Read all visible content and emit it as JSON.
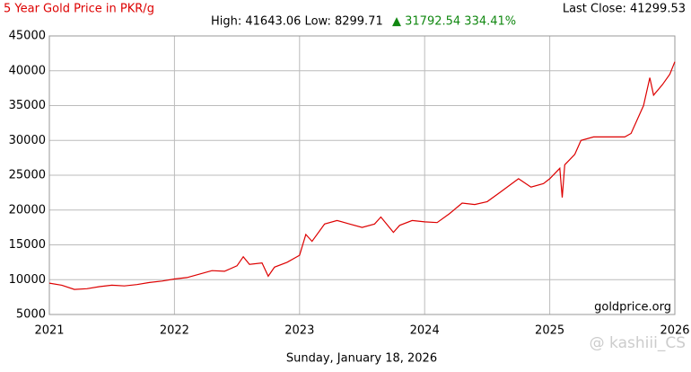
{
  "chart_data": {
    "type": "line",
    "title": "5 Year Gold Price in PKR/g",
    "stats": "High: 41643.06 Low: 8299.71",
    "change": "▲ 31792.54 334.41%",
    "last_close": "Last Close: 41299.53",
    "source": "goldprice.org",
    "date": "Sunday, January 18, 2026",
    "watermark": "@ kashiii_CS",
    "color": "#dd0000",
    "grid": true,
    "xlim": [
      2021,
      2026
    ],
    "xticks": [
      2021,
      2022,
      2023,
      2024,
      2025,
      2026
    ],
    "ylim": [
      5000,
      45000
    ],
    "yticks": [
      5000,
      10000,
      15000,
      20000,
      25000,
      30000,
      35000,
      40000,
      45000
    ],
    "x": [
      2021.0,
      2021.1,
      2021.2,
      2021.3,
      2021.4,
      2021.5,
      2021.6,
      2021.7,
      2021.8,
      2021.9,
      2022.0,
      2022.1,
      2022.2,
      2022.3,
      2022.4,
      2022.5,
      2022.55,
      2022.6,
      2022.7,
      2022.75,
      2022.8,
      2022.9,
      2023.0,
      2023.05,
      2023.1,
      2023.2,
      2023.3,
      2023.4,
      2023.5,
      2023.6,
      2023.65,
      2023.75,
      2023.8,
      2023.9,
      2024.0,
      2024.1,
      2024.2,
      2024.3,
      2024.4,
      2024.5,
      2024.6,
      2024.75,
      2024.85,
      2024.95,
      2025.0,
      2025.08,
      2025.1,
      2025.12,
      2025.2,
      2025.25,
      2025.35,
      2025.5,
      2025.6,
      2025.65,
      2025.75,
      2025.8,
      2025.83,
      2025.9,
      2025.96,
      2026.0
    ],
    "values": [
      9500,
      9200,
      8600,
      8700,
      9000,
      9200,
      9100,
      9300,
      9600,
      9800,
      10100,
      10300,
      10800,
      11300,
      11200,
      12000,
      13300,
      12200,
      12400,
      10500,
      11800,
      12500,
      13500,
      16500,
      15500,
      18000,
      18500,
      18000,
      17500,
      18000,
      19000,
      16800,
      17800,
      18500,
      18300,
      18200,
      19500,
      21000,
      20800,
      21200,
      22500,
      24500,
      23300,
      23800,
      24500,
      26000,
      21800,
      26500,
      28000,
      30000,
      30500,
      30500,
      30500,
      31000,
      35000,
      39000,
      36500,
      38000,
      39500,
      41300
    ]
  }
}
